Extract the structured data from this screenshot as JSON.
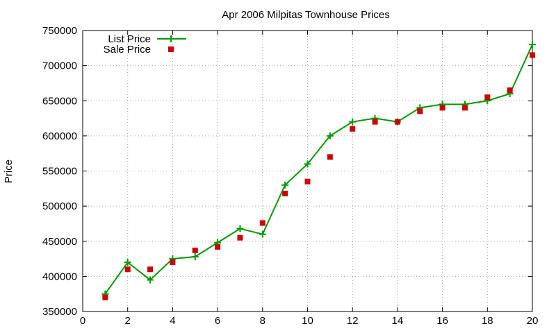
{
  "chart_data": {
    "type": "line",
    "title": "Apr 2006 Milpitas Townhouse Prices",
    "xlabel": "",
    "ylabel": "Price",
    "xlim": [
      0,
      20
    ],
    "ylim": [
      350000,
      750000
    ],
    "x_ticks": [
      0,
      2,
      4,
      6,
      8,
      10,
      12,
      14,
      16,
      18,
      20
    ],
    "y_ticks": [
      350000,
      400000,
      450000,
      500000,
      550000,
      600000,
      650000,
      700000,
      750000
    ],
    "grid": true,
    "legend_position": "top-left",
    "x": [
      1,
      2,
      3,
      4,
      5,
      6,
      7,
      8,
      9,
      10,
      11,
      12,
      13,
      14,
      15,
      16,
      17,
      18,
      19,
      20
    ],
    "series": [
      {
        "name": "List Price",
        "style": "linespoints",
        "marker": "plus",
        "color": "#009900",
        "values": [
          375000,
          420000,
          395000,
          425000,
          428000,
          448000,
          468000,
          460000,
          530000,
          560000,
          600000,
          620000,
          625000,
          620000,
          640000,
          645000,
          645000,
          650000,
          660000,
          730000
        ]
      },
      {
        "name": "Sale Price",
        "style": "points",
        "marker": "square",
        "color": "#cc0000",
        "values": [
          370000,
          410000,
          410000,
          420000,
          437000,
          442000,
          455000,
          476000,
          518000,
          535000,
          570000,
          610000,
          620000,
          620000,
          635000,
          640000,
          640000,
          655000,
          665000,
          715000
        ]
      }
    ]
  }
}
